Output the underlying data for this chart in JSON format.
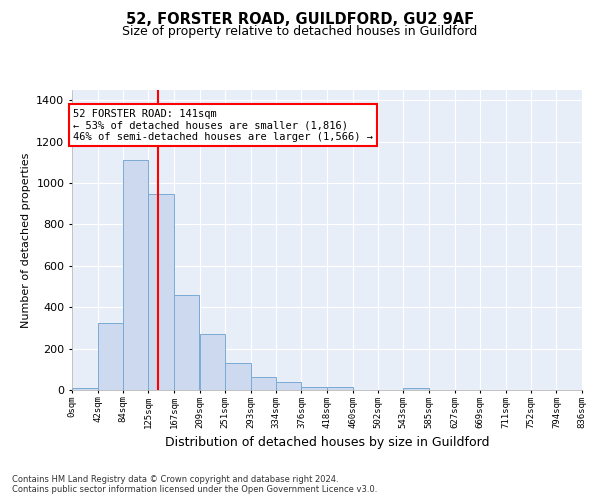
{
  "title1": "52, FORSTER ROAD, GUILDFORD, GU2 9AF",
  "title2": "Size of property relative to detached houses in Guildford",
  "xlabel": "Distribution of detached houses by size in Guildford",
  "ylabel": "Number of detached properties",
  "footer1": "Contains HM Land Registry data © Crown copyright and database right 2024.",
  "footer2": "Contains public sector information licensed under the Open Government Licence v3.0.",
  "annotation_title": "52 FORSTER ROAD: 141sqm",
  "annotation_line1": "← 53% of detached houses are smaller (1,816)",
  "annotation_line2": "46% of semi-detached houses are larger (1,566) →",
  "bar_color": "#ccd9ee",
  "bar_edge_color": "#7aaad4",
  "red_line_x": 141,
  "bin_edges": [
    0,
    42,
    84,
    125,
    167,
    209,
    251,
    293,
    334,
    376,
    418,
    460,
    502,
    543,
    585,
    627,
    669,
    711,
    752,
    794,
    836
  ],
  "bar_heights": [
    10,
    325,
    1110,
    945,
    460,
    270,
    130,
    65,
    40,
    15,
    15,
    0,
    0,
    10,
    0,
    0,
    0,
    0,
    0,
    0
  ],
  "ylim": [
    0,
    1450
  ],
  "yticks": [
    0,
    200,
    400,
    600,
    800,
    1000,
    1200,
    1400
  ],
  "bg_color": "#e8eef8",
  "grid_color": "#ffffff"
}
